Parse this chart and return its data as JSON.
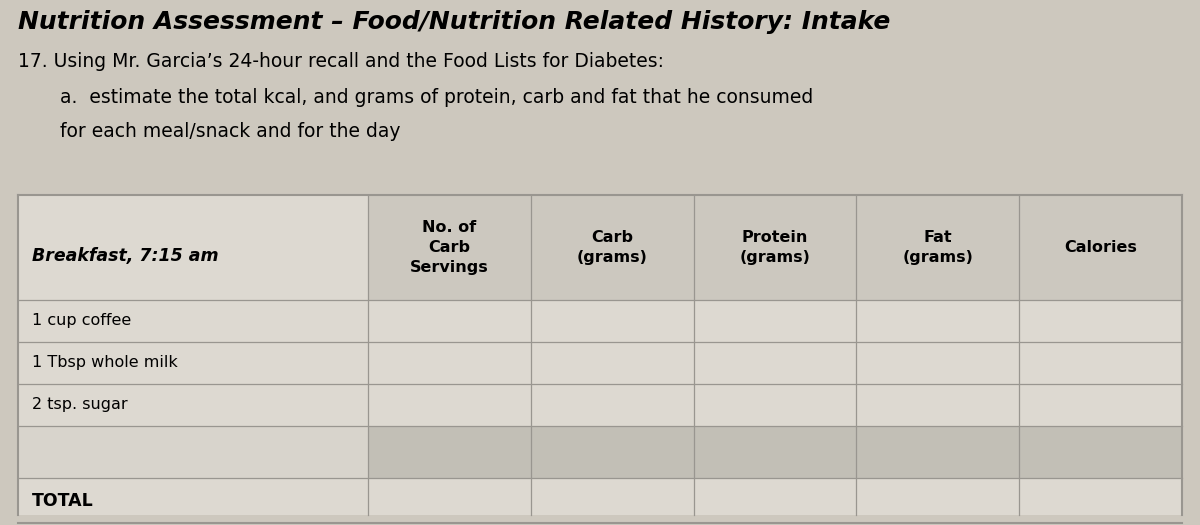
{
  "title_line1": "Nutrition Assessment – Food/Nutrition Related History: Intake",
  "title_line2": "17. Using Mr. Garcia’s 24-hour recall and the Food Lists for Diabetes:",
  "title_line3a": "a.  estimate the total kcal, and grams of protein, carb and fat that he consumed",
  "title_line3b": "for each meal/snack and for the day",
  "bg_color": "#cdc8be",
  "table_bg_light": "#ddd8ce",
  "table_bg_dark": "#c8c3ba",
  "col_labels": [
    "No. of\nCarb\nServings",
    "Carb\n(grams)",
    "Protein\n(grams)",
    "Fat\n(grams)",
    "Calories"
  ],
  "food_items": [
    "1 cup coffee",
    "1 Tbsp whole milk",
    "2 tsp. sugar"
  ],
  "meal_label": "Breakfast, 7:15 am",
  "total_label": "TOTAL"
}
